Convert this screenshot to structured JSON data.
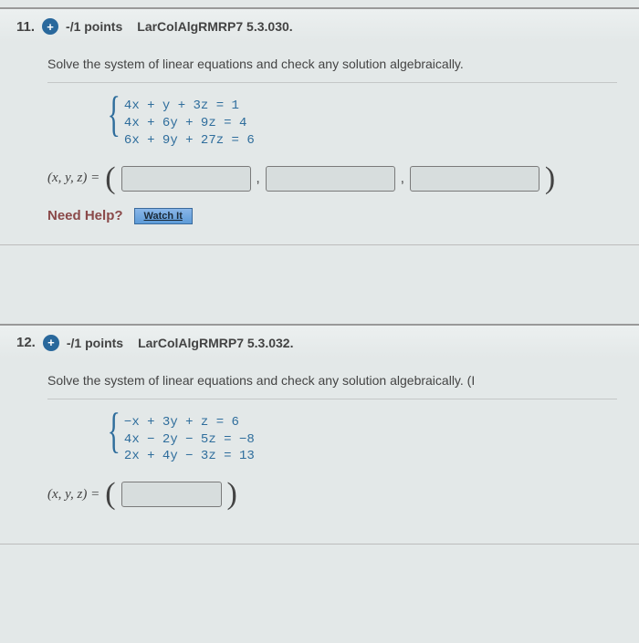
{
  "problems": [
    {
      "number": "11.",
      "plus_glyph": "+",
      "points": "-/1 points",
      "source": "LarColAlgRMRP7 5.3.030.",
      "instruction": "Solve the system of linear equations and check any solution algebraically.",
      "equations": [
        "4x +  y +  3z = 1",
        "4x + 6y +  9z = 4",
        "6x + 9y + 27z = 6"
      ],
      "answer_label": "(x, y, z) =",
      "answer_slots": 3,
      "need_help_label": "Need Help?",
      "watch_label": "Watch It"
    },
    {
      "number": "12.",
      "plus_glyph": "+",
      "points": "-/1 points",
      "source": "LarColAlgRMRP7 5.3.032.",
      "instruction": "Solve the system of linear equations and check any solution algebraically. (I",
      "equations": [
        "−x + 3y +  z =  6",
        " 4x − 2y − 5z = −8",
        " 2x + 4y − 3z = 13"
      ],
      "answer_label": "(x, y, z) =",
      "answer_slots": 1,
      "need_help_label": "",
      "watch_label": ""
    }
  ]
}
